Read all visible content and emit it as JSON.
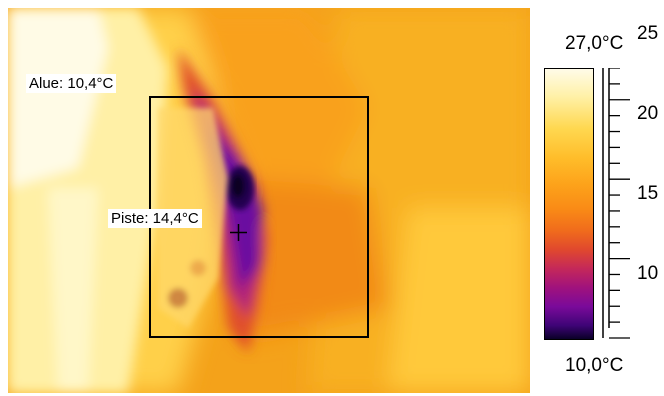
{
  "measurements": {
    "area_label": "Alue: 10,4°C",
    "spot_label": "Piste: 14,4°C"
  },
  "scale": {
    "max_label": "27,0°C",
    "min_label": "10,0°C",
    "min_value": 10.0,
    "max_value": 27.0,
    "ticks": [
      "25",
      "20",
      "15",
      "10"
    ]
  },
  "palette": {
    "hot": "#fffbe8",
    "warm": "#f39a18",
    "cold": "#0a0028"
  }
}
